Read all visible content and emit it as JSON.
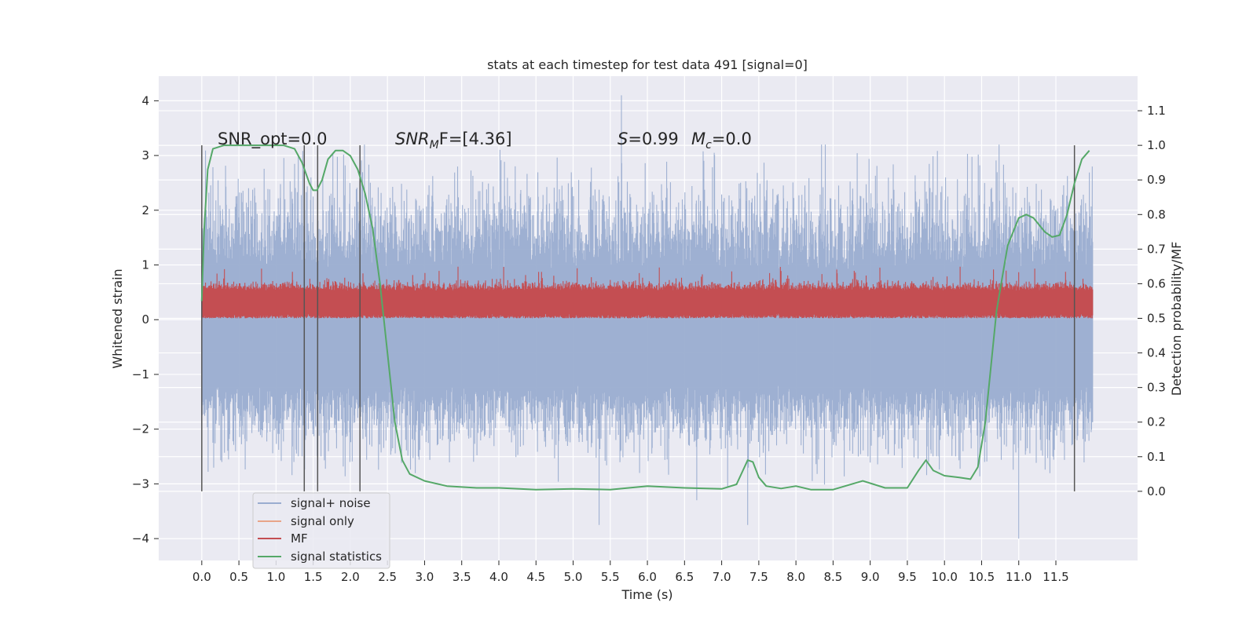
{
  "chart_data": {
    "type": "line",
    "title": "stats at each timestep for test data 491 [signal=0]",
    "xlabel": "Time (s)",
    "ylabel_left": "Whitened strain",
    "ylabel_right": "Detection probability/MF",
    "xlim": [
      -0.58,
      12.6
    ],
    "ylim_left": [
      -4.4,
      4.45
    ],
    "ylim_right": [
      -0.2,
      1.2
    ],
    "x_ticks": [
      "0.0",
      "0.5",
      "1.0",
      "1.5",
      "2.0",
      "2.5",
      "3.0",
      "3.5",
      "4.0",
      "4.5",
      "5.0",
      "5.5",
      "6.0",
      "6.5",
      "7.0",
      "7.5",
      "8.0",
      "8.5",
      "9.0",
      "9.5",
      "10.0",
      "10.5",
      "11.0",
      "11.5"
    ],
    "x_tick_values": [
      0,
      0.5,
      1,
      1.5,
      2,
      2.5,
      3,
      3.5,
      4,
      4.5,
      5,
      5.5,
      6,
      6.5,
      7,
      7.5,
      8,
      8.5,
      9,
      9.5,
      10,
      10.5,
      11,
      11.5
    ],
    "y_left_ticks": [
      "4",
      "3",
      "2",
      "1",
      "0",
      "−1",
      "−2",
      "−3",
      "−4"
    ],
    "y_left_tick_values": [
      4,
      3,
      2,
      1,
      0,
      -1,
      -2,
      -3,
      -4
    ],
    "y_right_ticks": [
      "1.1",
      "1.0",
      "0.9",
      "0.8",
      "0.7",
      "0.6",
      "0.5",
      "0.4",
      "0.3",
      "0.2",
      "0.1",
      "0.0"
    ],
    "y_right_tick_values": [
      1.1,
      1.0,
      0.9,
      0.8,
      0.7,
      0.6,
      0.5,
      0.4,
      0.3,
      0.2,
      0.1,
      0.0
    ],
    "grid": true,
    "legend_position": "lower-left",
    "annotations": {
      "snr_opt": "SNR_opt=0.0",
      "snr_mf_main": "SNR",
      "snr_mf_sub": "M",
      "snr_mf_tail": "F=[4.36]",
      "s_main": "S",
      "s_tail": "=0.99",
      "mc_main": "M",
      "mc_sub": "c",
      "mc_tail": "=0.0"
    },
    "vertical_markers": [
      0.0,
      1.38,
      1.56,
      2.13,
      11.75
    ],
    "series": [
      {
        "name": "signal+ noise",
        "color": "#9aadd0",
        "axis": "left",
        "x_range": [
          0,
          12.0
        ],
        "envelope_typical": [
          -1.8,
          2.0
        ],
        "peaks": [
          {
            "x": 5.65,
            "y": 4.1
          },
          {
            "x": 11.0,
            "y": -4.0
          },
          {
            "x": 7.35,
            "y": -3.75
          },
          {
            "x": 5.35,
            "y": -3.75
          }
        ]
      },
      {
        "name": "signal only",
        "color": "#e8a589",
        "axis": "left",
        "values_note_visible": ""
      },
      {
        "name": "MF",
        "color": "#c44e52",
        "axis": "right",
        "x_range": [
          0,
          12.0
        ],
        "typical_range": [
          0.5,
          0.6
        ],
        "peaks_max": 0.65
      },
      {
        "name": "signal statistics",
        "color": "#55a868",
        "axis": "right",
        "x": [
          0.0,
          0.03,
          0.08,
          0.15,
          0.3,
          0.6,
          0.9,
          1.1,
          1.25,
          1.35,
          1.45,
          1.5,
          1.55,
          1.62,
          1.7,
          1.8,
          1.9,
          2.0,
          2.1,
          2.2,
          2.3,
          2.4,
          2.5,
          2.6,
          2.7,
          2.8,
          3.0,
          3.3,
          3.7,
          4.0,
          4.5,
          5.0,
          5.5,
          6.0,
          6.5,
          7.0,
          7.2,
          7.35,
          7.42,
          7.5,
          7.6,
          7.8,
          8.0,
          8.2,
          8.5,
          8.9,
          9.2,
          9.5,
          9.65,
          9.75,
          9.85,
          10.0,
          10.2,
          10.35,
          10.45,
          10.55,
          10.7,
          10.85,
          11.0,
          11.1,
          11.2,
          11.35,
          11.45,
          11.55,
          11.65,
          11.75,
          11.85,
          11.95
        ],
        "y": [
          0.55,
          0.75,
          0.93,
          0.99,
          1.0,
          1.0,
          1.0,
          1.0,
          0.99,
          0.95,
          0.89,
          0.87,
          0.87,
          0.9,
          0.96,
          0.985,
          0.985,
          0.97,
          0.93,
          0.86,
          0.76,
          0.6,
          0.4,
          0.2,
          0.09,
          0.05,
          0.03,
          0.015,
          0.01,
          0.01,
          0.005,
          0.007,
          0.005,
          0.015,
          0.01,
          0.007,
          0.02,
          0.09,
          0.085,
          0.04,
          0.015,
          0.008,
          0.015,
          0.005,
          0.005,
          0.03,
          0.01,
          0.01,
          0.06,
          0.09,
          0.06,
          0.045,
          0.04,
          0.035,
          0.07,
          0.2,
          0.52,
          0.71,
          0.79,
          0.8,
          0.79,
          0.75,
          0.735,
          0.74,
          0.8,
          0.89,
          0.96,
          0.985
        ]
      }
    ]
  }
}
